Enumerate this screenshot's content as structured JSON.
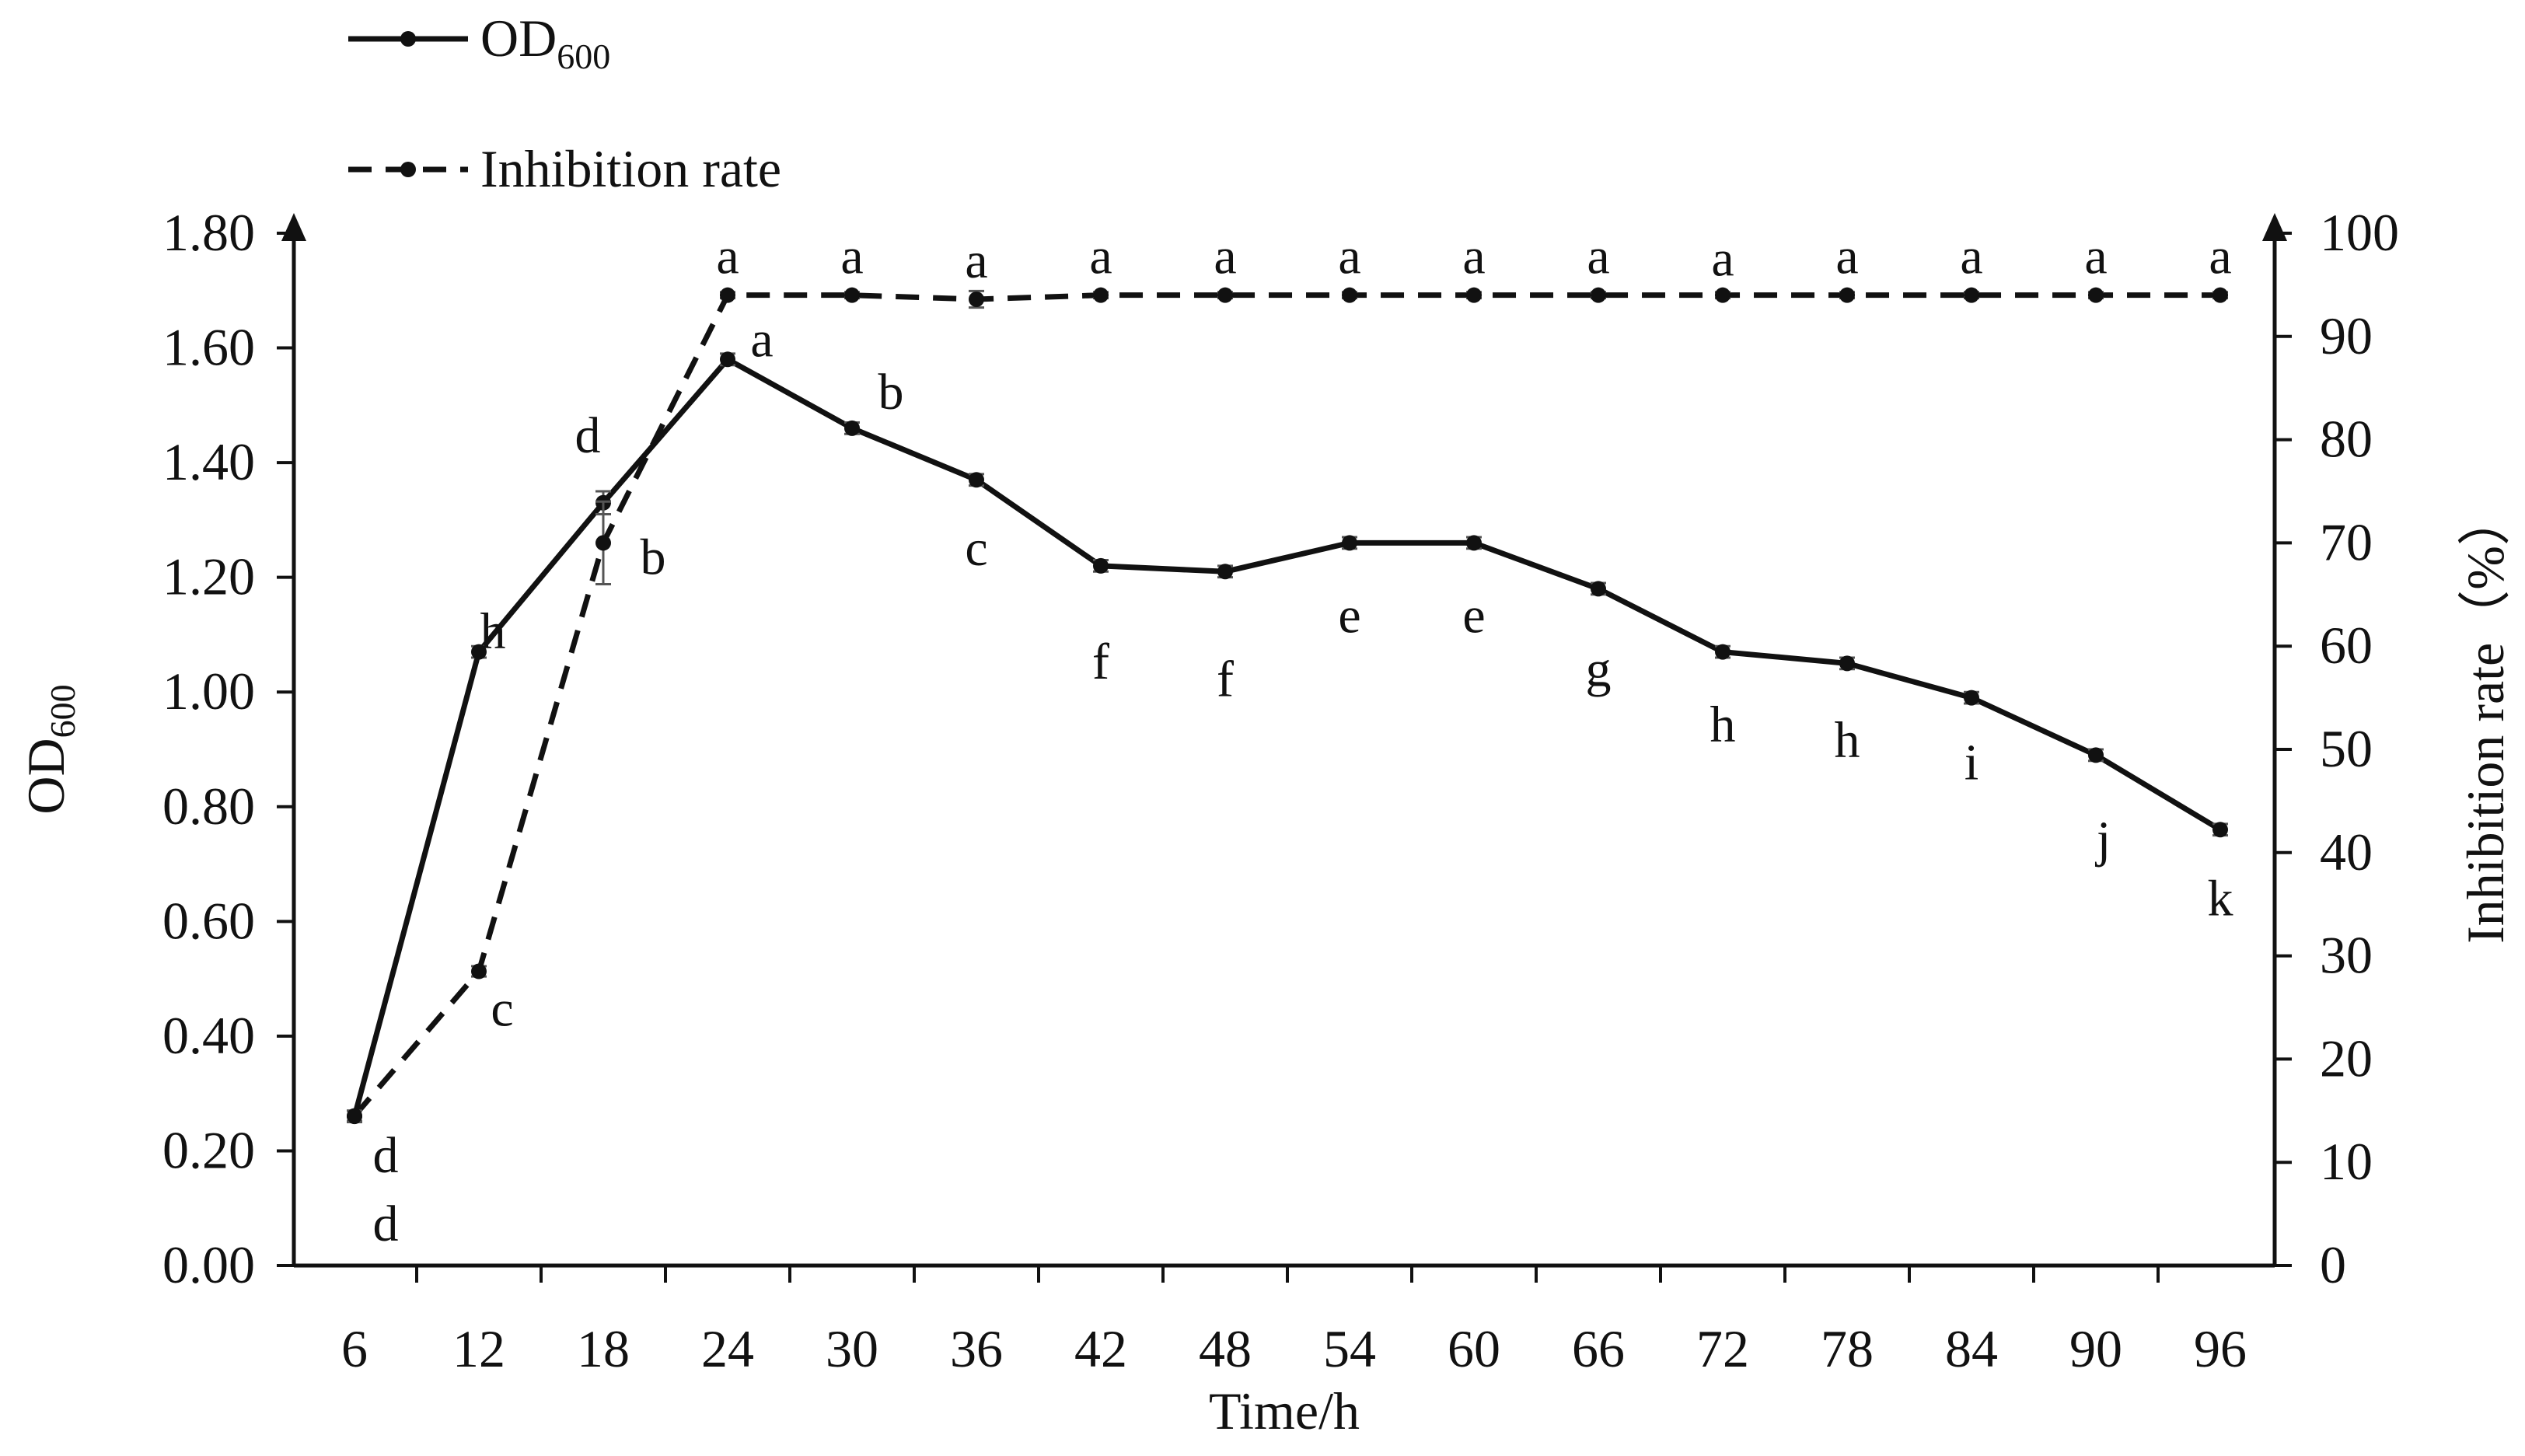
{
  "chart_data": {
    "type": "line",
    "x": [
      6,
      12,
      18,
      24,
      30,
      36,
      42,
      48,
      54,
      60,
      66,
      72,
      78,
      84,
      90,
      96
    ],
    "xlabel": "Time/h",
    "y_left_label": "OD",
    "y_left_label_sub": "600",
    "y_right_label": "Inhibition rate（%）",
    "y_left_lim": [
      0,
      1.8
    ],
    "y_left_ticks": [
      "0.00",
      "0.20",
      "0.40",
      "0.60",
      "0.80",
      "1.00",
      "1.20",
      "1.40",
      "1.60",
      "1.80"
    ],
    "y_right_lim": [
      0,
      100
    ],
    "y_right_ticks": [
      "0",
      "10",
      "20",
      "30",
      "40",
      "50",
      "60",
      "70",
      "80",
      "90",
      "100"
    ],
    "series": [
      {
        "name": "OD",
        "name_sub": "600",
        "axis": "left",
        "style": "solid",
        "values": [
          0.26,
          1.07,
          1.33,
          1.58,
          1.46,
          1.37,
          1.22,
          1.21,
          1.26,
          1.26,
          1.18,
          1.07,
          1.05,
          0.99,
          0.89,
          0.76
        ],
        "errors": [
          0.01,
          0.01,
          0.02,
          0.01,
          0.01,
          0.01,
          0.01,
          0.01,
          0.01,
          0.01,
          0.01,
          0.01,
          0.01,
          0.01,
          0.01,
          0.01
        ],
        "labels": [
          "d",
          "h",
          "d",
          "a",
          "b",
          "c",
          "f",
          "f",
          "e",
          "e",
          "g",
          "h",
          "h",
          "i",
          "j",
          "k"
        ]
      },
      {
        "name": "Inhibition rate",
        "axis": "right",
        "style": "dashed",
        "values": [
          14.5,
          28.5,
          70,
          94,
          94,
          93.6,
          94,
          94,
          94,
          94,
          94,
          94,
          94,
          94,
          94,
          94
        ],
        "errors": [
          0.5,
          0.5,
          4.0,
          0.3,
          0.3,
          0.8,
          0.3,
          0.3,
          0.3,
          0.3,
          0.3,
          0.3,
          0.3,
          0.3,
          0.3,
          0.3
        ],
        "labels": [
          "d",
          "c",
          "b",
          "a",
          "a",
          "a",
          "a",
          "a",
          "a",
          "a",
          "a",
          "a",
          "a",
          "a",
          "a",
          "a"
        ]
      }
    ],
    "legend": "top-left",
    "grid": false
  }
}
